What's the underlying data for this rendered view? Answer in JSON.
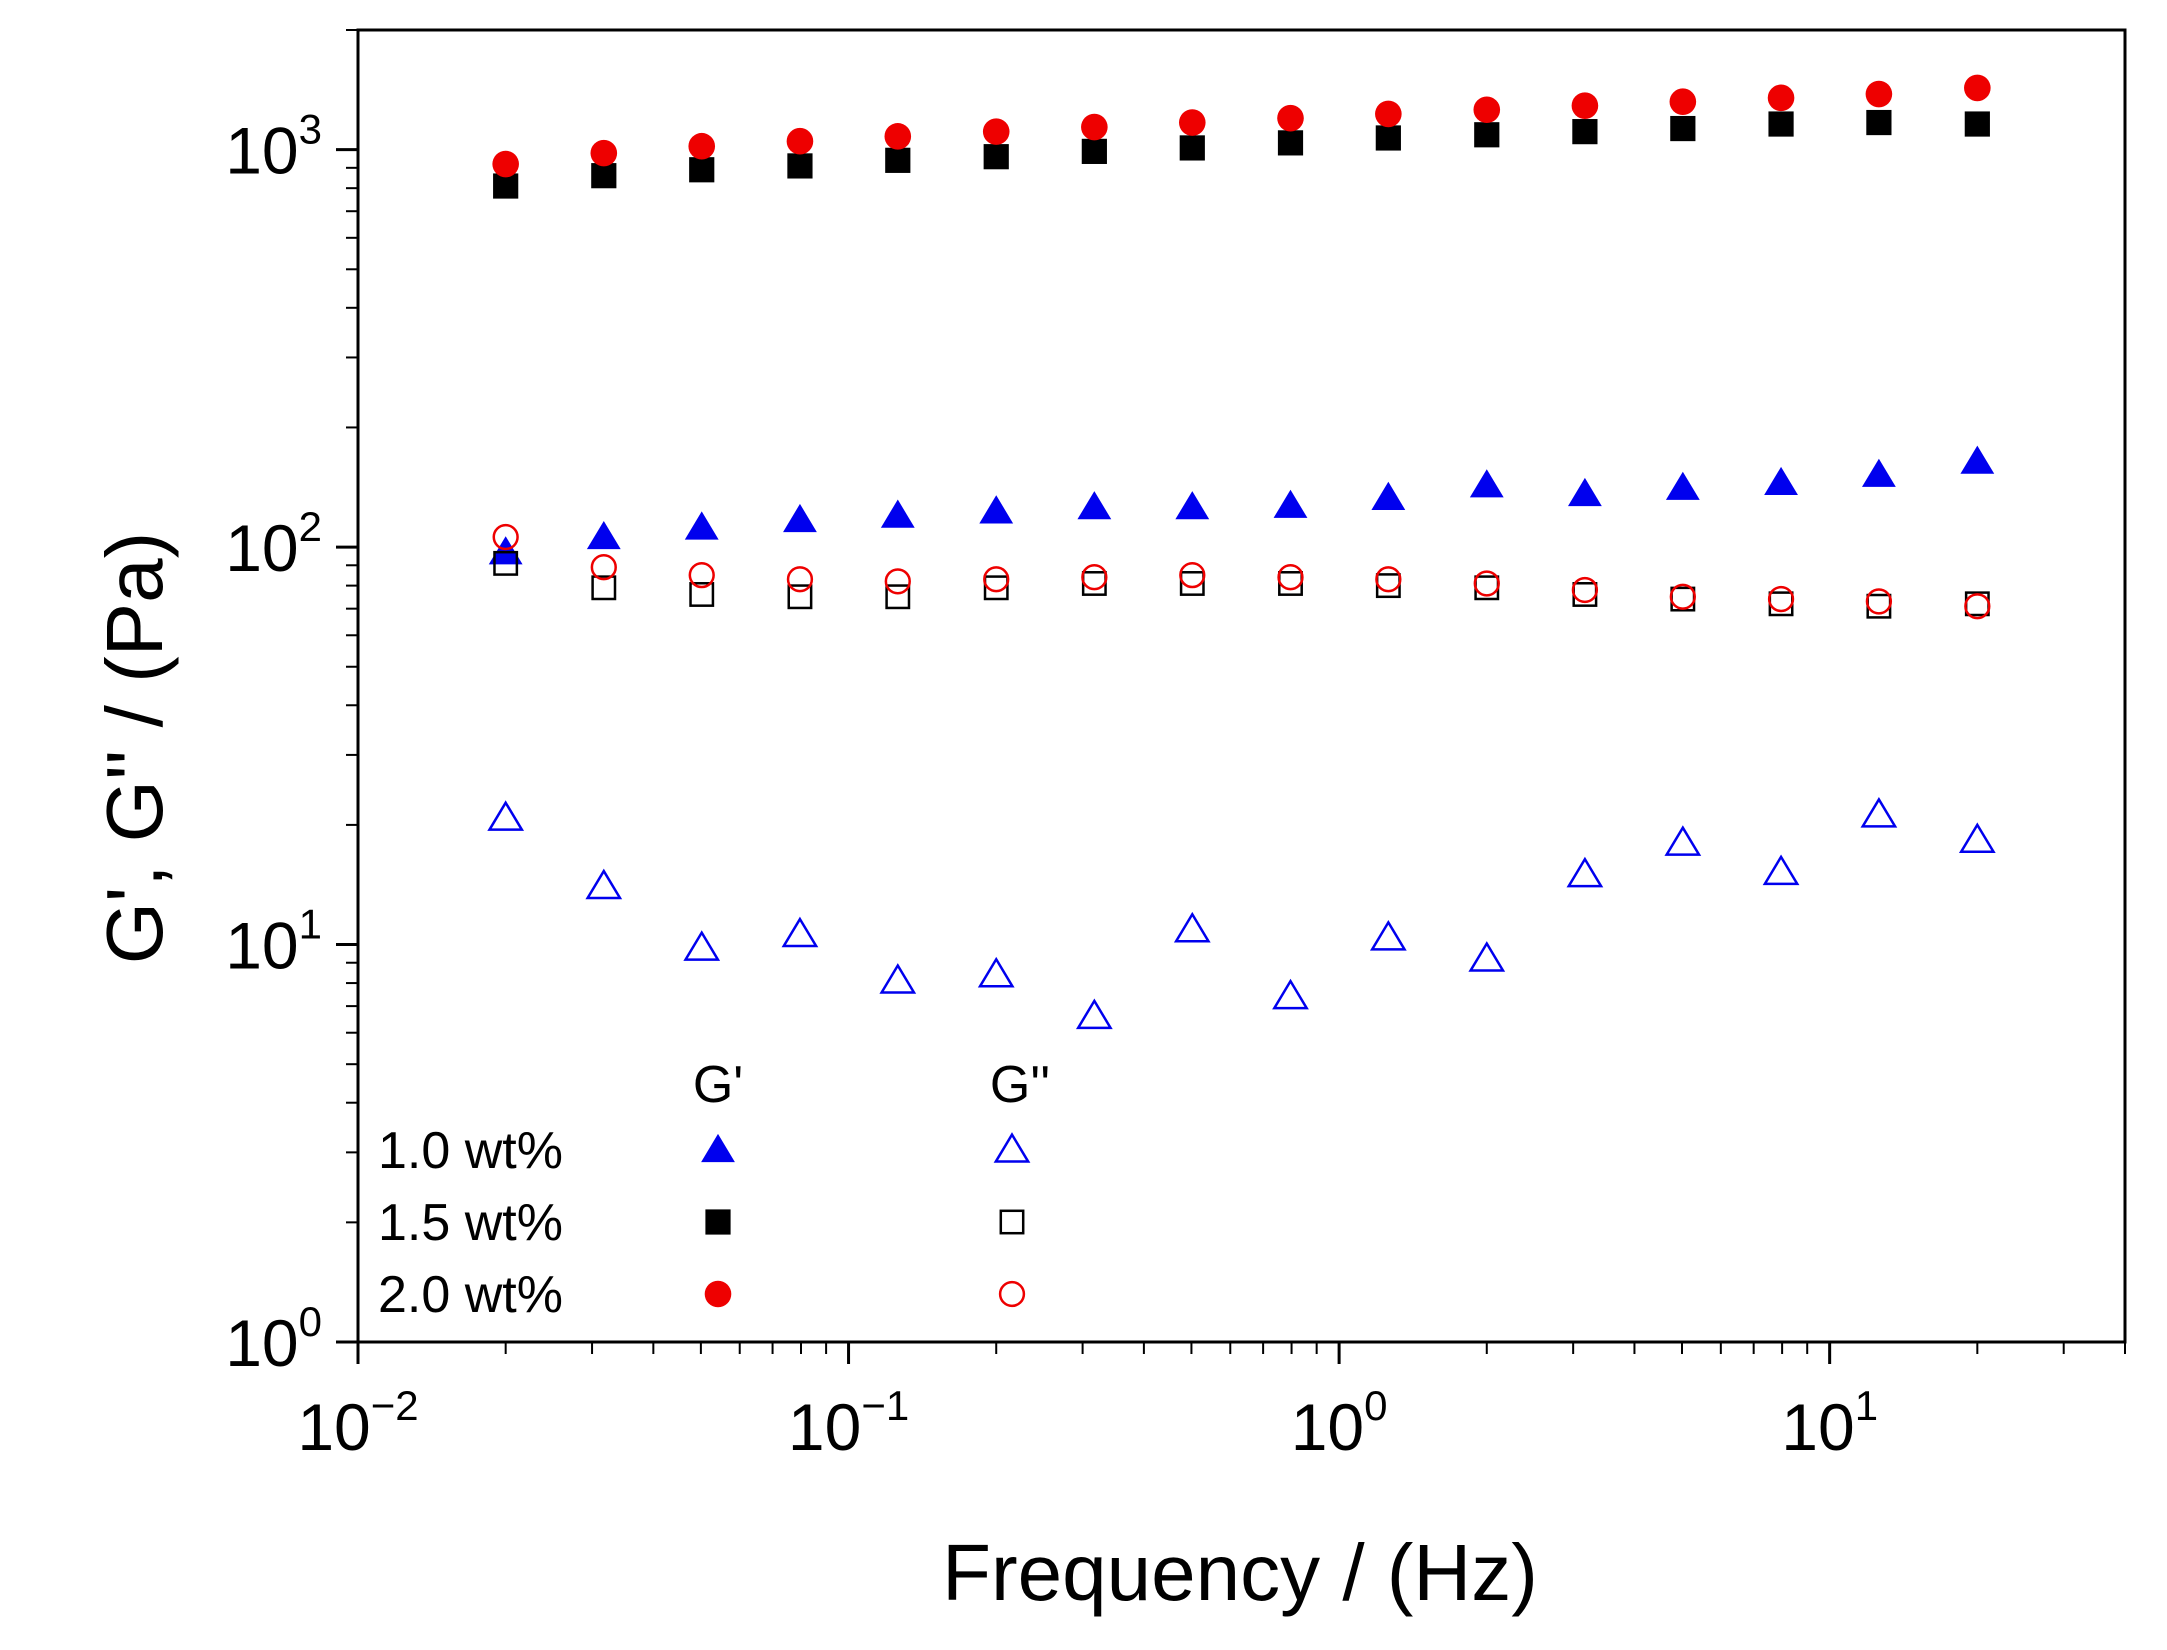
{
  "chart_data": {
    "type": "scatter",
    "title": "",
    "xlabel": "Frequency / (Hz)",
    "ylabel": "G', G'' / (Pa)",
    "xscale": "log",
    "yscale": "log",
    "xlim": [
      0.01,
      40
    ],
    "ylim": [
      1,
      2000
    ],
    "x_ticks": [
      {
        "value": 0.01,
        "base": "10",
        "exp": "−2"
      },
      {
        "value": 0.1,
        "base": "10",
        "exp": "−1"
      },
      {
        "value": 1,
        "base": "10",
        "exp": "0"
      },
      {
        "value": 10,
        "base": "10",
        "exp": "1"
      }
    ],
    "y_ticks": [
      {
        "value": 1,
        "base": "10",
        "exp": "0"
      },
      {
        "value": 10,
        "base": "10",
        "exp": "1"
      },
      {
        "value": 100,
        "base": "10",
        "exp": "2"
      },
      {
        "value": 1000,
        "base": "10",
        "exp": "3"
      }
    ],
    "x": [
      0.02,
      0.0317,
      0.0502,
      0.0796,
      0.126,
      0.2,
      0.317,
      0.502,
      0.796,
      1.26,
      2.0,
      3.17,
      5.02,
      7.96,
      12.6,
      20.0
    ],
    "legend": {
      "placement": "bottom-left",
      "col_headers": [
        "G'",
        "G''"
      ],
      "rows": [
        "1.0 wt%",
        "1.5 wt%",
        "2.0 wt%"
      ]
    },
    "series": [
      {
        "name": "1.0 wt% G'",
        "marker": "triangle",
        "filled": true,
        "color": "#0000ee",
        "values": [
          97,
          106,
          112,
          117,
          120,
          123,
          126,
          126,
          127,
          133,
          143,
          136,
          141,
          145,
          152,
          164
        ]
      },
      {
        "name": "1.0 wt% G''",
        "marker": "triangle",
        "filled": false,
        "color": "#0000ee",
        "values": [
          20.8,
          14.0,
          9.8,
          10.6,
          8.1,
          8.4,
          6.6,
          10.9,
          7.4,
          10.4,
          9.2,
          15.0,
          18.0,
          15.2,
          21.2,
          18.3
        ]
      },
      {
        "name": "1.5 wt% G'",
        "marker": "square",
        "filled": true,
        "color": "#000000",
        "values": [
          810,
          860,
          890,
          910,
          940,
          960,
          990,
          1010,
          1040,
          1070,
          1090,
          1110,
          1130,
          1160,
          1170,
          1160
        ]
      },
      {
        "name": "1.5 wt% G''",
        "marker": "square",
        "filled": false,
        "color": "#000000",
        "values": [
          91,
          79,
          76,
          75,
          75,
          79,
          81,
          81,
          81,
          80,
          79,
          76,
          74,
          72,
          71,
          72
        ]
      },
      {
        "name": "2.0 wt% G'",
        "marker": "circle",
        "filled": true,
        "color": "#ee0000",
        "values": [
          920,
          980,
          1020,
          1050,
          1080,
          1110,
          1140,
          1170,
          1200,
          1230,
          1260,
          1290,
          1320,
          1350,
          1380,
          1430
        ]
      },
      {
        "name": "2.0 wt% G''",
        "marker": "circle",
        "filled": false,
        "color": "#ee0000",
        "values": [
          106,
          89,
          85,
          83,
          82,
          83,
          84,
          85,
          84,
          83,
          81,
          78,
          75,
          74,
          73,
          71
        ]
      }
    ]
  }
}
